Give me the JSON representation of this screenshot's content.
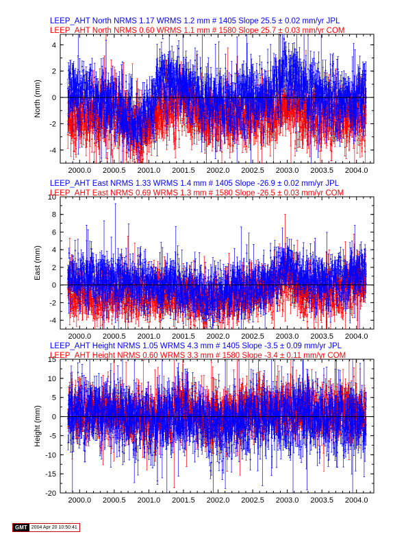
{
  "chart_data": [
    {
      "type": "scatter",
      "title_lines": [
        {
          "text": "LEEP_AHT North NRMS 1.17 WRMS  1.2 mm # 1405 Slope   25.5 ±  0.02 mm/yr JPL",
          "color": "#0000ff"
        },
        {
          "text": "LEEP_AHT North NRMS 0.60 WRMS  1.1 mm # 1580 Slope   25.7 ±  0.03 mm/yr COM",
          "color": "#ff0000"
        }
      ],
      "ylabel": "North (mm)",
      "xlim": [
        1999.72,
        2004.25
      ],
      "ylim": [
        -5,
        4.8
      ],
      "x_ticks": [
        "2000.0",
        "2000.5",
        "2001.0",
        "2001.5",
        "2002.0",
        "2002.5",
        "2003.0",
        "2003.5",
        "2004.0"
      ],
      "y_ticks": [
        "-4",
        "-2",
        "0",
        "2",
        "4"
      ],
      "x_range_data": [
        1999.83,
        2004.14
      ],
      "series": [
        {
          "name": "JPL",
          "color": "#0000ff",
          "n": 1405,
          "wrms_mm": 1.2,
          "slope_mm_yr": 25.5,
          "slope_sigma": 0.02,
          "trend_pattern": [
            [
              1999.83,
              0.6
            ],
            [
              2000.0,
              0.2
            ],
            [
              2000.5,
              -0.6
            ],
            [
              2000.85,
              -2.2
            ],
            [
              2001.0,
              -1.0
            ],
            [
              2001.2,
              1.5
            ],
            [
              2001.5,
              1.0
            ],
            [
              2001.8,
              -0.3
            ],
            [
              2002.3,
              -0.2
            ],
            [
              2002.7,
              0.0
            ],
            [
              2003.0,
              2.0
            ],
            [
              2003.3,
              0.5
            ],
            [
              2003.7,
              -0.3
            ],
            [
              2004.14,
              0.2
            ]
          ]
        },
        {
          "name": "COM",
          "color": "#ff0000",
          "n": 1580,
          "wrms_mm": 1.1,
          "slope_mm_yr": 25.7,
          "slope_sigma": 0.03,
          "trend_pattern": [
            [
              1999.83,
              -1.8
            ],
            [
              2000.0,
              -1.6
            ],
            [
              2000.5,
              -1.2
            ],
            [
              2000.85,
              -2.8
            ],
            [
              2001.0,
              -2.5
            ],
            [
              2001.2,
              -1.0
            ],
            [
              2001.5,
              -0.2
            ],
            [
              2001.8,
              -1.6
            ],
            [
              2002.3,
              -1.5
            ],
            [
              2002.7,
              -1.4
            ],
            [
              2003.0,
              -0.6
            ],
            [
              2003.3,
              -1.4
            ],
            [
              2003.7,
              -1.6
            ],
            [
              2004.14,
              -1.8
            ]
          ]
        }
      ]
    },
    {
      "type": "scatter",
      "title_lines": [
        {
          "text": "LEEP_AHT East NRMS 1.33 WRMS  1.4 mm # 1405 Slope  -26.9 ±  0.02 mm/yr JPL",
          "color": "#0000ff"
        },
        {
          "text": "LEEP_AHT East NRMS 0.69 WRMS  1.3 mm # 1580 Slope  -26.5 ±  0.03 mm/yr COM",
          "color": "#ff0000"
        }
      ],
      "ylabel": "East (mm)",
      "xlim": [
        1999.72,
        2004.25
      ],
      "ylim": [
        -5,
        10
      ],
      "x_ticks": [
        "2000.0",
        "2000.5",
        "2001.0",
        "2001.5",
        "2002.0",
        "2002.5",
        "2003.0",
        "2003.5",
        "2004.0"
      ],
      "y_ticks": [
        "-4",
        "-2",
        "0",
        "2",
        "4",
        "6",
        "8",
        "10"
      ],
      "x_range_data": [
        1999.83,
        2004.14
      ],
      "series": [
        {
          "name": "JPL",
          "color": "#0000ff",
          "n": 1405,
          "wrms_mm": 1.4,
          "slope_mm_yr": -26.9,
          "slope_sigma": 0.02,
          "trend_pattern": [
            [
              1999.83,
              1.0
            ],
            [
              2000.3,
              0.8
            ],
            [
              2000.8,
              0.2
            ],
            [
              2001.3,
              0.0
            ],
            [
              2001.8,
              -1.0
            ],
            [
              2002.3,
              -0.5
            ],
            [
              2002.7,
              0.0
            ],
            [
              2003.0,
              2.2
            ],
            [
              2003.2,
              0.5
            ],
            [
              2003.6,
              0.3
            ],
            [
              2004.14,
              1.6
            ]
          ]
        },
        {
          "name": "COM",
          "color": "#ff0000",
          "n": 1580,
          "wrms_mm": 1.3,
          "slope_mm_yr": -26.5,
          "slope_sigma": 0.03,
          "trend_pattern": [
            [
              1999.83,
              -1.0
            ],
            [
              2000.3,
              -1.1
            ],
            [
              2000.8,
              -1.0
            ],
            [
              2001.3,
              -1.3
            ],
            [
              2001.8,
              -2.0
            ],
            [
              2002.3,
              -1.4
            ],
            [
              2002.7,
              -0.5
            ],
            [
              2003.0,
              1.0
            ],
            [
              2003.2,
              -0.8
            ],
            [
              2003.6,
              -0.9
            ],
            [
              2004.14,
              0.5
            ]
          ]
        }
      ]
    },
    {
      "type": "scatter",
      "title_lines": [
        {
          "text": "LEEP_AHT Height NRMS 1.05 WRMS  4.3 mm # 1405 Slope   -3.5 ±  0.09 mm/yr JPL",
          "color": "#0000ff"
        },
        {
          "text": "LEEP_AHT Height NRMS 0.60 WRMS  3.3 mm # 1580 Slope   -3.4 ±  0.11 mm/yr COM",
          "color": "#ff0000"
        }
      ],
      "ylabel": "Height (mm)",
      "xlim": [
        1999.72,
        2004.25
      ],
      "ylim": [
        -20,
        15
      ],
      "x_ticks": [
        "2000.0",
        "2000.5",
        "2001.0",
        "2001.5",
        "2002.0",
        "2002.5",
        "2003.0",
        "2003.5",
        "2004.0"
      ],
      "y_ticks": [
        "-20",
        "-15",
        "-10",
        "-5",
        "0",
        "5",
        "10",
        "15"
      ],
      "x_range_data": [
        1999.83,
        2004.14
      ],
      "series": [
        {
          "name": "JPL",
          "color": "#0000ff",
          "n": 1405,
          "wrms_mm": 4.3,
          "slope_mm_yr": -3.5,
          "slope_sigma": 0.09,
          "trend_pattern": [
            [
              1999.83,
              1.0
            ],
            [
              2000.5,
              0.5
            ],
            [
              2001.0,
              -2.0
            ],
            [
              2001.5,
              0.5
            ],
            [
              2002.0,
              -3.0
            ],
            [
              2002.5,
              0.0
            ],
            [
              2003.0,
              0.5
            ],
            [
              2003.5,
              0.0
            ],
            [
              2004.14,
              -1.0
            ]
          ]
        },
        {
          "name": "COM",
          "color": "#ff0000",
          "n": 1580,
          "wrms_mm": 3.3,
          "slope_mm_yr": -3.4,
          "slope_sigma": 0.11,
          "trend_pattern": [
            [
              1999.83,
              1.0
            ],
            [
              2000.5,
              1.0
            ],
            [
              2001.0,
              0.0
            ],
            [
              2001.5,
              2.0
            ],
            [
              2002.0,
              0.0
            ],
            [
              2002.5,
              2.0
            ],
            [
              2003.0,
              2.0
            ],
            [
              2003.5,
              1.5
            ],
            [
              2004.14,
              1.0
            ]
          ]
        }
      ]
    }
  ],
  "footer": {
    "logo": "GMT",
    "stamp": "2004 Apr 20 10:50:41"
  }
}
